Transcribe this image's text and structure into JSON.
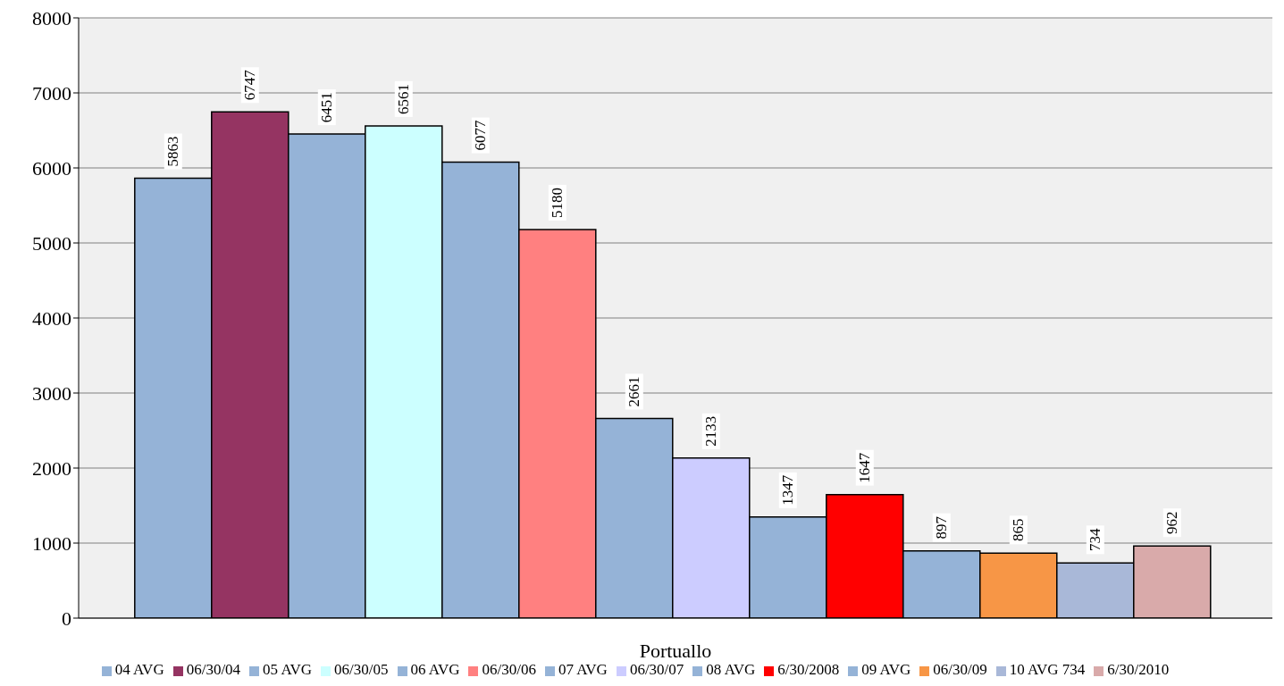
{
  "chart_data": {
    "type": "bar",
    "categories": [
      "Portuallo"
    ],
    "series": [
      {
        "name": "04 AVG",
        "color": "#95b3d7",
        "values": [
          5863
        ]
      },
      {
        "name": "06/30/04",
        "color": "#953462",
        "values": [
          6747
        ]
      },
      {
        "name": "05 AVG",
        "color": "#95b3d7",
        "values": [
          6451
        ]
      },
      {
        "name": "06/30/05",
        "color": "#ccffff",
        "values": [
          6561
        ]
      },
      {
        "name": "06 AVG",
        "color": "#95b3d7",
        "values": [
          6077
        ]
      },
      {
        "name": "06/30/06",
        "color": "#ff8080",
        "values": [
          5180
        ]
      },
      {
        "name": "07 AVG",
        "color": "#95b3d7",
        "values": [
          2661
        ]
      },
      {
        "name": "06/30/07",
        "color": "#ccccff",
        "values": [
          2133
        ]
      },
      {
        "name": "08 AVG",
        "color": "#95b3d7",
        "values": [
          1347
        ]
      },
      {
        "name": "6/30/2008",
        "color": "#ff0000",
        "values": [
          1647
        ]
      },
      {
        "name": "09 AVG",
        "color": "#95b3d7",
        "values": [
          897
        ]
      },
      {
        "name": "06/30/09",
        "color": "#f79646",
        "values": [
          865
        ]
      },
      {
        "name": "10 AVG 734",
        "color": "#a9b8d8",
        "values": [
          734
        ]
      },
      {
        "name": "6/30/2010",
        "color": "#d9aaaa",
        "values": [
          962
        ]
      }
    ],
    "ylim": [
      0,
      8000
    ],
    "yticks": [
      0,
      1000,
      2000,
      3000,
      4000,
      5000,
      6000,
      7000,
      8000
    ],
    "grid": "y",
    "legend": "bottom",
    "data_labels": true
  }
}
